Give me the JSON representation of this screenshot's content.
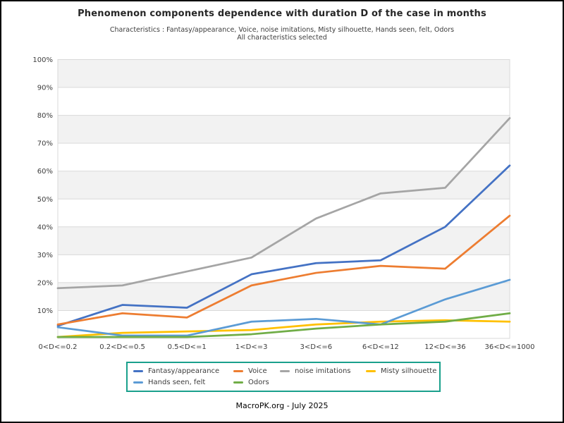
{
  "header": {
    "title": "Phenomenon components dependence with duration D of the case in months",
    "subtitle_line1": "Characteristics : Fantasy/appearance, Voice, noise imitations, Misty silhouette, Hands seen, felt, Odors",
    "subtitle_line2": "All characteristics selected"
  },
  "footer": {
    "credit": "MacroPK.org - July 2025"
  },
  "colors": {
    "figure_border": "#000000",
    "legend_border": "#1aa08c",
    "band_fill": "#f2f2f2",
    "grid_line": "#d9d9d9",
    "tick_text": "#3d3d3d",
    "title_text": "#262626"
  },
  "chart_data": {
    "type": "line",
    "title": "Phenomenon components dependence with duration D of the case in months",
    "xlabel": "",
    "ylabel": "",
    "ylim": [
      0,
      100
    ],
    "grid": true,
    "plot_bands": "alternating light-gray horizontal bands every 10%",
    "legend_position": "bottom",
    "categories": [
      "0<D<=0.2",
      "0.2<D<=0.5",
      "0.5<D<=1",
      "1<D<=3",
      "3<D<=6",
      "6<D<=12",
      "12<D<=36",
      "36<D<=1000"
    ],
    "ytick_labels": [
      "10%",
      "20%",
      "30%",
      "40%",
      "50%",
      "60%",
      "70%",
      "80%",
      "90%",
      "100%"
    ],
    "yunit": "%",
    "series": [
      {
        "name": "Fantasy/appearance",
        "color": "#4472c4",
        "values": [
          4.5,
          12,
          11,
          23,
          27,
          28,
          40,
          62
        ]
      },
      {
        "name": "Voice",
        "color": "#ed7d31",
        "values": [
          5,
          9,
          7.5,
          19,
          23.5,
          26,
          25,
          44
        ]
      },
      {
        "name": "noise imitations",
        "color": "#a5a5a5",
        "values": [
          18,
          19,
          24,
          29,
          43,
          52,
          54,
          79
        ]
      },
      {
        "name": "Misty silhouette",
        "color": "#ffc000",
        "values": [
          0.5,
          2,
          2.5,
          3,
          5,
          6,
          6.5,
          6
        ]
      },
      {
        "name": "Hands seen, felt",
        "color": "#5b9bd5",
        "values": [
          4,
          1,
          1,
          6,
          7,
          5,
          14,
          21
        ]
      },
      {
        "name": "Odors",
        "color": "#70ad47",
        "values": [
          0.5,
          0.5,
          0.5,
          1.5,
          3.5,
          5,
          6,
          9
        ]
      }
    ]
  }
}
